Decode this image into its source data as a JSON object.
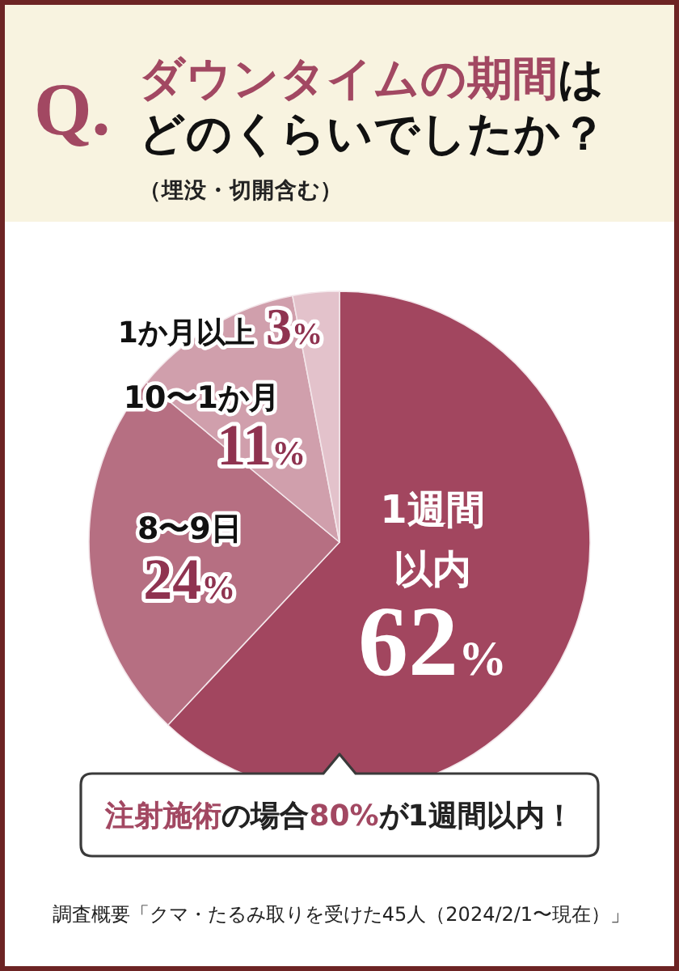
{
  "chart_data": {
    "type": "pie",
    "title": "ダウンタイムの期間はどのくらいでしたか？",
    "subtitle": "（埋没・切開含む）",
    "categories": [
      "1週間以内",
      "8〜9日",
      "10〜1か月",
      "1か月以上"
    ],
    "values": [
      62,
      24,
      11,
      3
    ],
    "value_labels": [
      "62%",
      "24%",
      "11%",
      "3%"
    ],
    "colors": [
      "#a2465f",
      "#b66f82",
      "#d09fac",
      "#e3c2cb"
    ],
    "annotations": [
      "Q.",
      "注射施術の場合80%が1週間以内！",
      "調査概要「クマ・たるみ取りを受けた45人（2024/2/1〜現在）」"
    ]
  }
}
